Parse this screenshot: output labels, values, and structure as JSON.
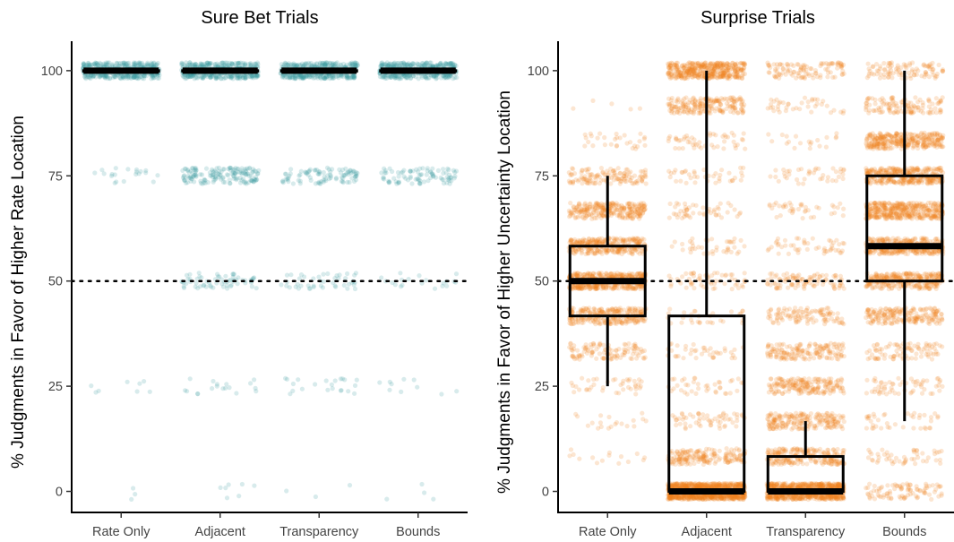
{
  "chart_data": [
    {
      "type": "box+jitter",
      "title": "Sure Bet Trials",
      "xlabel": "",
      "ylabel": "% Judgments in Favor of Higher Rate Location",
      "categories": [
        "Rate Only",
        "Adjacent",
        "Transparency",
        "Bounds"
      ],
      "yticks": [
        0,
        25,
        50,
        75,
        100
      ],
      "ytick_labels": [
        "0",
        "25",
        "50",
        "75",
        "100"
      ],
      "ylim": [
        -5,
        107
      ],
      "reference_line": 50,
      "point_color": "#3a9a9e",
      "box_color": "#000000",
      "point_levels": [
        0,
        25,
        50,
        75,
        100
      ],
      "point_counts": [
        [
          3,
          8,
          0,
          20,
          420
        ],
        [
          7,
          18,
          65,
          160,
          420
        ],
        [
          3,
          22,
          45,
          95,
          420
        ],
        [
          4,
          10,
          20,
          90,
          420
        ]
      ],
      "boxes": [
        {
          "category": "Rate Only",
          "min": 100,
          "q1": 100,
          "median": 100,
          "q3": 100,
          "max": 100
        },
        {
          "category": "Adjacent",
          "min": 100,
          "q1": 100,
          "median": 100,
          "q3": 100,
          "max": 100
        },
        {
          "category": "Transparency",
          "min": 100,
          "q1": 100,
          "median": 100,
          "q3": 100,
          "max": 100
        },
        {
          "category": "Bounds",
          "min": 100,
          "q1": 100,
          "median": 100,
          "q3": 100,
          "max": 100
        }
      ]
    },
    {
      "type": "box+jitter",
      "title": "Surprise Trials",
      "xlabel": "",
      "ylabel": "% Judgments in Favor of Higher Uncertainty Location",
      "categories": [
        "Rate Only",
        "Adjacent",
        "Transparency",
        "Bounds"
      ],
      "yticks": [
        0,
        25,
        50,
        75,
        100
      ],
      "ytick_labels": [
        "0",
        "25",
        "50",
        "75",
        "100"
      ],
      "ylim": [
        -5,
        107
      ],
      "reference_line": 50,
      "point_color": "#f0801e",
      "box_color": "#000000",
      "point_levels": [
        0,
        8.3,
        16.7,
        25,
        33.3,
        41.7,
        50,
        58.3,
        66.7,
        75,
        83.3,
        91.7,
        100
      ],
      "point_counts": [
        [
          0,
          15,
          20,
          40,
          110,
          260,
          450,
          300,
          260,
          130,
          30,
          5,
          0
        ],
        [
          950,
          180,
          60,
          40,
          40,
          30,
          60,
          40,
          50,
          40,
          50,
          200,
          420
        ],
        [
          750,
          220,
          200,
          190,
          160,
          110,
          100,
          50,
          40,
          40,
          20,
          40,
          110
        ],
        [
          90,
          50,
          40,
          60,
          90,
          200,
          300,
          350,
          400,
          350,
          320,
          120,
          100
        ]
      ],
      "boxes": [
        {
          "category": "Rate Only",
          "min": 25,
          "q1": 41.7,
          "median": 50,
          "q3": 58.3,
          "max": 75
        },
        {
          "category": "Adjacent",
          "min": 0,
          "q1": 0,
          "median": 0,
          "q3": 41.7,
          "max": 100
        },
        {
          "category": "Transparency",
          "min": 0,
          "q1": 0,
          "median": 0,
          "q3": 8.3,
          "max": 16.7
        },
        {
          "category": "Bounds",
          "min": 16.7,
          "q1": 50,
          "median": 58.3,
          "q3": 75,
          "max": 100
        }
      ]
    }
  ]
}
